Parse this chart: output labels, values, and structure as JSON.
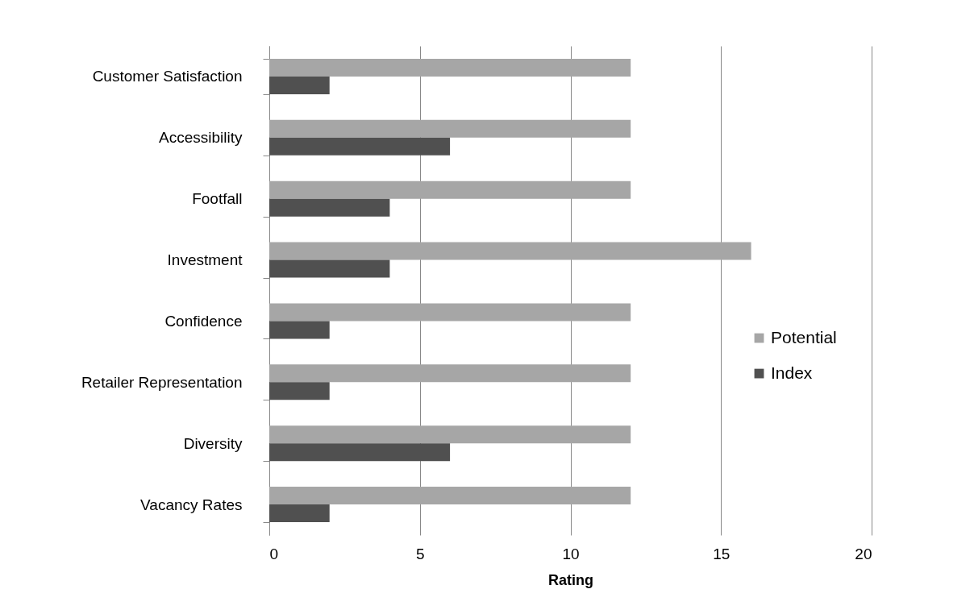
{
  "chart_data": {
    "type": "bar",
    "orientation": "horizontal",
    "xlabel": "Rating",
    "categories": [
      "Customer Satisfaction",
      "Accessibility",
      "Footfall",
      "Investment",
      "Confidence",
      "Retailer Representation",
      "Diversity",
      "Vacancy Rates"
    ],
    "series": [
      {
        "name": "Potential",
        "color": "#a6a6a6",
        "values": [
          12,
          12,
          12,
          16,
          12,
          12,
          12,
          12
        ]
      },
      {
        "name": "Index",
        "color": "#505050",
        "values": [
          2,
          6,
          4,
          4,
          2,
          2,
          6,
          2
        ]
      }
    ],
    "xlim": [
      0,
      20
    ],
    "xticks": [
      0,
      5,
      10,
      15,
      20
    ],
    "grid": "x",
    "legend": "right"
  }
}
